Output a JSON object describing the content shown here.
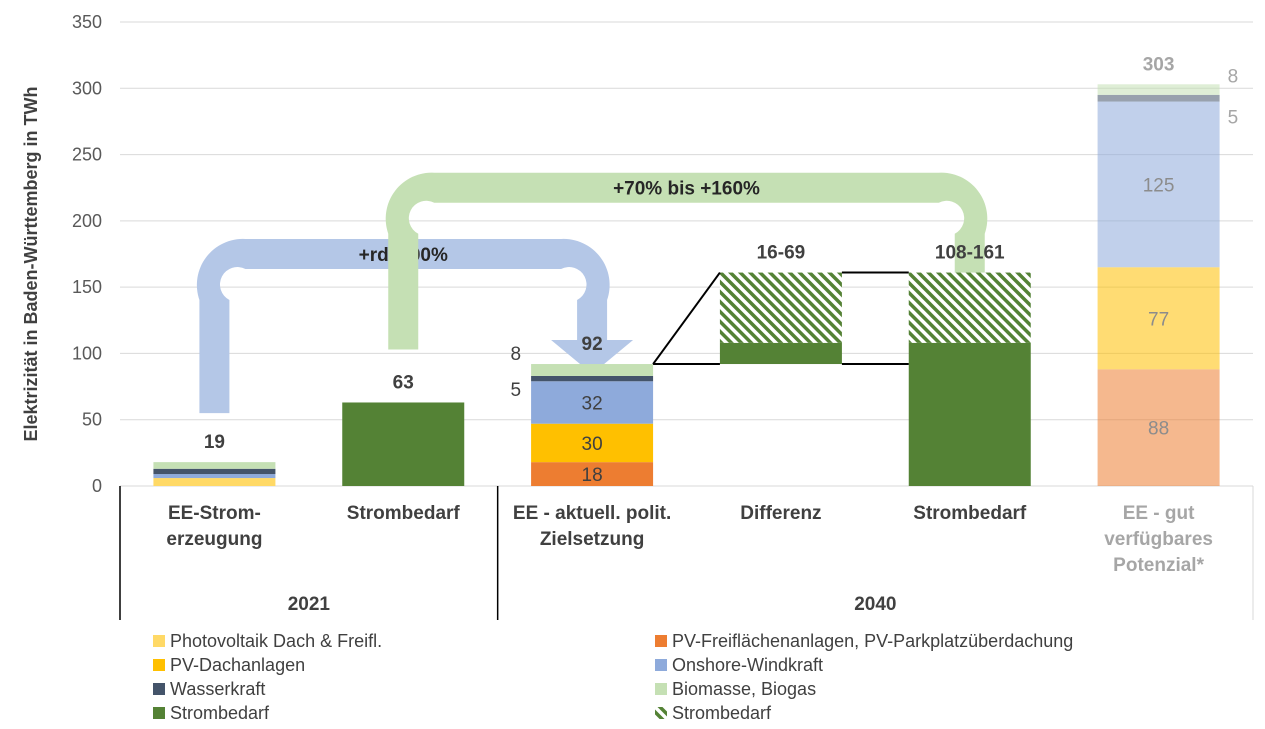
{
  "chart_data": {
    "type": "bar",
    "stacked": true,
    "ylabel": "Elektrizität in Baden-Württemberg in TWh",
    "ylim": [
      0,
      350
    ],
    "yticks": [
      0,
      50,
      100,
      150,
      200,
      250,
      300,
      350
    ],
    "grid": true,
    "groups": [
      {
        "label": "2021",
        "categories": [
          "EE-Strom-erzeugung",
          "Strombedarf"
        ]
      },
      {
        "label": "2040",
        "categories": [
          "EE - aktuell. polit. Zielsetzung",
          "Differenz",
          "Strombedarf",
          "EE - gut verfügbares Potenzial*"
        ]
      }
    ],
    "categories": [
      {
        "id": "ee2021",
        "label_lines": [
          "EE-Strom-",
          "erzeugung"
        ],
        "muted": false
      },
      {
        "id": "bedarf2021",
        "label_lines": [
          "Strombedarf"
        ],
        "muted": false
      },
      {
        "id": "ee2040",
        "label_lines": [
          "EE - aktuell. polit.",
          "Zielsetzung"
        ],
        "muted": false
      },
      {
        "id": "diff",
        "label_lines": [
          "Differenz"
        ],
        "muted": false
      },
      {
        "id": "bedarf2040",
        "label_lines": [
          "Strombedarf"
        ],
        "muted": false
      },
      {
        "id": "potenzial",
        "label_lines": [
          "EE - gut",
          "verfügbares",
          "Potenzial*"
        ],
        "muted": true
      }
    ],
    "series": [
      {
        "key": "pv_dach_freifl",
        "name": "Photovoltaik Dach & Freifl.",
        "color": "#ffd966"
      },
      {
        "key": "pv_freiflaechen",
        "name": "PV-Freiflächenanlagen, PV-Parkplatzüberdachung",
        "color": "#ed7d31"
      },
      {
        "key": "pv_dach",
        "name": "PV-Dachanlagen",
        "color": "#ffc000"
      },
      {
        "key": "onshore_wind",
        "name": "Onshore-Windkraft",
        "color": "#8eaadb"
      },
      {
        "key": "wasserkraft",
        "name": "Wasserkraft",
        "color": "#44546a"
      },
      {
        "key": "biomasse",
        "name": "Biomasse, Biogas",
        "color": "#c5e0b4"
      },
      {
        "key": "strombedarf",
        "name": "Strombedarf",
        "color": "#548235"
      },
      {
        "key": "strombedarf_range",
        "name": "Strombedarf",
        "color": "#548235",
        "pattern": "hatch"
      }
    ],
    "bars": [
      {
        "category": "ee2021",
        "total_label": "19",
        "segments": [
          {
            "series": "pv_dach_freifl",
            "from": 0,
            "to": 6
          },
          {
            "series": "onshore_wind",
            "from": 6,
            "to": 9
          },
          {
            "series": "wasserkraft",
            "from": 9,
            "to": 13
          },
          {
            "series": "biomasse",
            "from": 13,
            "to": 18
          }
        ]
      },
      {
        "category": "bedarf2021",
        "total_label": "63",
        "segments": [
          {
            "series": "strombedarf",
            "from": 0,
            "to": 63
          }
        ]
      },
      {
        "category": "ee2040",
        "total_label": "92",
        "segments": [
          {
            "series": "pv_freiflaechen",
            "from": 0,
            "to": 18,
            "label": "18"
          },
          {
            "series": "pv_dach",
            "from": 18,
            "to": 47,
            "label": "30"
          },
          {
            "series": "onshore_wind",
            "from": 47,
            "to": 79,
            "label": "32"
          },
          {
            "series": "wasserkraft",
            "from": 79,
            "to": 83,
            "side_label": "5"
          },
          {
            "series": "biomasse",
            "from": 83,
            "to": 92,
            "side_label": "8"
          }
        ]
      },
      {
        "category": "diff",
        "total_label": "16-69",
        "segments": [
          {
            "series": "strombedarf",
            "from": 92,
            "to": 108
          },
          {
            "series": "strombedarf_range",
            "from": 108,
            "to": 161
          }
        ]
      },
      {
        "category": "bedarf2040",
        "total_label": "108-161",
        "segments": [
          {
            "series": "strombedarf",
            "from": 0,
            "to": 108
          },
          {
            "series": "strombedarf_range",
            "from": 108,
            "to": 161
          }
        ]
      },
      {
        "category": "potenzial",
        "total_label": "303",
        "muted": true,
        "segments": [
          {
            "series": "pv_freiflaechen",
            "from": 0,
            "to": 88,
            "label": "88"
          },
          {
            "series": "pv_dach",
            "from": 88,
            "to": 165,
            "label": "77"
          },
          {
            "series": "onshore_wind",
            "from": 165,
            "to": 290,
            "label": "125"
          },
          {
            "series": "wasserkraft",
            "from": 290,
            "to": 295,
            "side_label": "5"
          },
          {
            "series": "biomasse",
            "from": 295,
            "to": 303,
            "side_label": "8"
          }
        ]
      }
    ],
    "annotations": [
      {
        "text": "+rd. 400%",
        "from_category": "ee2021",
        "to_category": "ee2040",
        "color": "#b4c7e7"
      },
      {
        "text": "+70% bis +160%",
        "from_category": "bedarf2021",
        "to_category": "bedarf2040",
        "color": "#c5e0b4"
      }
    ],
    "legend": {
      "placement": "bottom",
      "items": [
        {
          "series": "pv_dach_freifl",
          "label": "Photovoltaik Dach & Freifl."
        },
        {
          "series": "pv_freiflaechen",
          "label": "PV-Freiflächenanlagen, PV-Parkplatzüberdachung"
        },
        {
          "series": "pv_dach",
          "label": "PV-Dachanlagen"
        },
        {
          "series": "onshore_wind",
          "label": "Onshore-Windkraft"
        },
        {
          "series": "wasserkraft",
          "label": "Wasserkraft"
        },
        {
          "series": "biomasse",
          "label": "Biomasse, Biogas"
        },
        {
          "series": "strombedarf",
          "label": "Strombedarf"
        },
        {
          "series": "strombedarf_range",
          "label": "Strombedarf"
        }
      ]
    }
  }
}
